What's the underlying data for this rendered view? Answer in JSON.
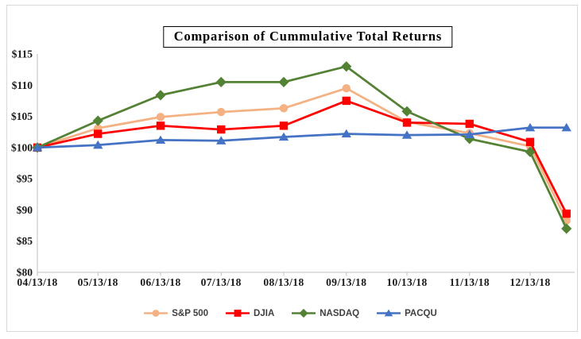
{
  "chart_data": {
    "type": "line",
    "title": "Comparison of Cummulative Total Returns",
    "xlabel": "",
    "ylabel": "",
    "ylim": [
      80,
      115
    ],
    "y_tick_step": 5,
    "y_tick_labels": [
      "$80",
      "$85",
      "$90",
      "$95",
      "$100",
      "$105",
      "$110",
      "$115"
    ],
    "x_tick_labels": [
      "04/13/18",
      "05/13/18",
      "06/13/18",
      "07/13/18",
      "08/13/18",
      "09/13/18",
      "10/13/18",
      "11/13/18",
      "12/13/18"
    ],
    "x_days": [
      0,
      30,
      61,
      91,
      122,
      153,
      183,
      214,
      244,
      262
    ],
    "grid": false,
    "legend_position": "bottom",
    "axis_color": "#BFBFBF",
    "frame_color": "#D9D9D9",
    "series": [
      {
        "name": "S&P 500",
        "color": "#F4B183",
        "marker": "circle",
        "values": [
          100,
          103.1,
          104.9,
          105.7,
          106.3,
          109.5,
          104.1,
          102.3,
          100.2,
          88.3
        ]
      },
      {
        "name": "DJIA",
        "color": "#FF0000",
        "marker": "square",
        "values": [
          100,
          102.2,
          103.5,
          102.9,
          103.5,
          107.5,
          104.0,
          103.8,
          100.9,
          89.4
        ]
      },
      {
        "name": "NASDAQ",
        "color": "#548235",
        "marker": "diamond",
        "values": [
          100,
          104.3,
          108.4,
          110.5,
          110.5,
          113.0,
          105.8,
          101.4,
          99.3,
          87.0
        ]
      },
      {
        "name": "PACQU",
        "color": "#4472C4",
        "marker": "triangle",
        "values": [
          100,
          100.4,
          101.2,
          101.1,
          101.7,
          102.2,
          102.0,
          102.1,
          103.2,
          103.2
        ]
      }
    ]
  }
}
